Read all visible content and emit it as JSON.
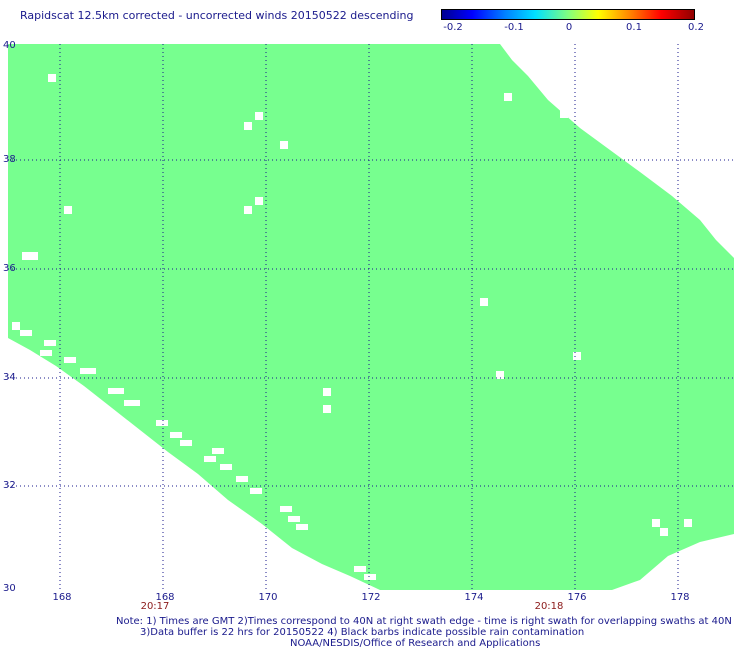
{
  "title": "Rapidscat 12.5km corrected - uncorrected winds 20150522 descending",
  "colorbar": {
    "ticks": [
      "-0.2",
      "-0.1",
      "0",
      "0.1",
      "0.2"
    ],
    "min": -0.2,
    "max": 0.2
  },
  "map": {
    "lat_range": [
      30,
      40
    ],
    "lon_range": [
      166.7,
      178.9
    ],
    "lat_labels": [
      "40",
      "38",
      "36",
      "34",
      "32",
      "30"
    ],
    "lon_labels": [
      "168",
      "168",
      "170",
      "172",
      "174",
      "176",
      "178"
    ],
    "time_labels": [
      "20:17",
      "20:18"
    ],
    "fill_color": "#77ff8f",
    "grid_color": "#1a1a8c"
  },
  "notes": {
    "line1": "Note: 1) Times are GMT 2)Times correspond to 40N at right swath edge - time is right swath for overlapping swaths at 40N",
    "line2": "3)Data buffer is 22 hrs for 20150522 4) Black barbs indicate possible rain contamination",
    "line3": "NOAA/NESDIS/Office of Research and Applications"
  }
}
